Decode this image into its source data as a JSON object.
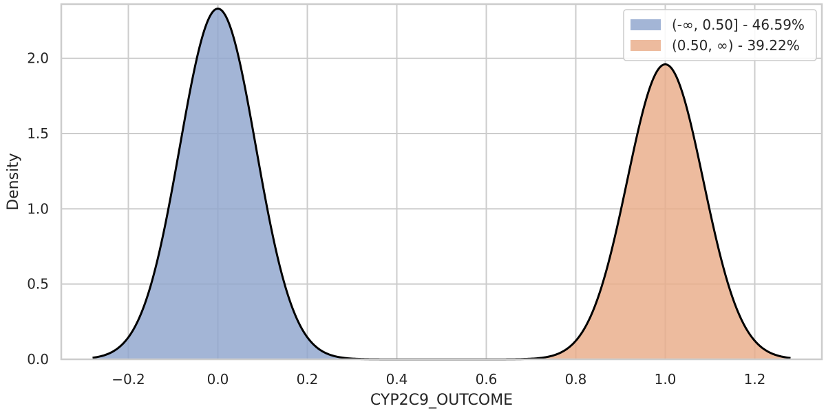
{
  "chart_data": {
    "type": "area",
    "xlabel": "CYP2C9_OUTCOME",
    "ylabel": "Density",
    "xlim": [
      -0.35,
      1.35
    ],
    "ylim": [
      0.0,
      2.36
    ],
    "grid": true,
    "x_ticks": [
      -0.2,
      0.0,
      0.2,
      0.4,
      0.6,
      0.8,
      1.0,
      1.2
    ],
    "x_tick_labels": [
      "−0.2",
      "0.0",
      "0.2",
      "0.4",
      "0.6",
      "0.8",
      "1.0",
      "1.2"
    ],
    "y_ticks": [
      0.0,
      0.5,
      1.0,
      1.5,
      2.0
    ],
    "y_tick_labels": [
      "0.0",
      "0.5",
      "1.0",
      "1.5",
      "2.0"
    ],
    "legend_position": "top-right",
    "density_curve": {
      "color": "#000000",
      "x_range": [
        -0.28,
        1.28
      ],
      "components": [
        {
          "mean": 0.0,
          "peak": 2.33,
          "sd": 0.085
        },
        {
          "mean": 1.0,
          "peak": 1.96,
          "sd": 0.085
        }
      ]
    },
    "series": [
      {
        "name": "(-∞, 0.50] - 46.59%",
        "color": "#8fa5cd",
        "x_range": [
          -0.28,
          0.5
        ]
      },
      {
        "name": "(0.50, ∞) - 39.22%",
        "color": "#e9ac89",
        "x_range": [
          0.5,
          1.28
        ]
      }
    ]
  }
}
